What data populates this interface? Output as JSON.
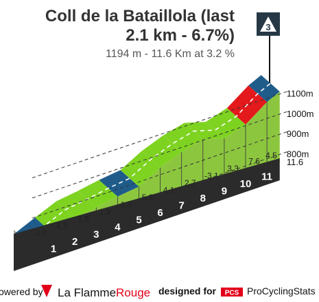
{
  "header": {
    "title_line1": "Coll de la Bataillola (last",
    "title_line2": "2.1 km - 6.7%)",
    "subtitle": "1194 m - 11.6 Km at 3.2 %",
    "category": "3"
  },
  "footer": {
    "powered_by": "owered by",
    "brand_la": "La Flamme",
    "brand_rouge": "Rouge",
    "designed_for": "designed for",
    "pcs_badge": "PCS",
    "pcs_name": "ProCyclingStats"
  },
  "chart_data": {
    "type": "area",
    "xlabel": "",
    "ylabel": "",
    "total_km_label": "11.6",
    "elevation_labels": [
      "1100m",
      "1000m",
      "900m",
      "800m"
    ],
    "km_labels": [
      "1",
      "2",
      "3",
      "4",
      "5",
      "6",
      "7",
      "8",
      "9",
      "10",
      "11"
    ],
    "km_gradients": [
      "4.7",
      "4.5",
      "1.5",
      "1.9",
      "1.3",
      "5.9",
      "4.1",
      "2.7",
      "-3.1",
      "3.3",
      "7.6",
      "4.5"
    ],
    "profile_km": [
      0,
      1,
      2,
      3,
      4,
      5,
      6,
      7,
      8,
      9,
      10,
      11,
      11.6
    ],
    "profile_elevation_m": [
      820,
      867,
      912,
      927,
      946,
      959,
      1018,
      1059,
      1086,
      1055,
      1088,
      1164,
      1194
    ],
    "segment_colors": [
      "#1f5c8a",
      "#7ed321",
      "#7ed321",
      "#7ed321",
      "#1f5c8a",
      "#7ed321",
      "#7ed321",
      "#7ed321",
      "#7ed321",
      "#7ed321",
      "#e3191b",
      "#1f5c8a"
    ],
    "colors": {
      "fill": "#8cc63f",
      "fill_shade": "#7ab536",
      "base": "#2b2b2b",
      "start_block": "#b0a898",
      "grid": "#333333",
      "road": "#ffffff",
      "category_box": "#263845",
      "accent_red": "#e2001a"
    }
  }
}
